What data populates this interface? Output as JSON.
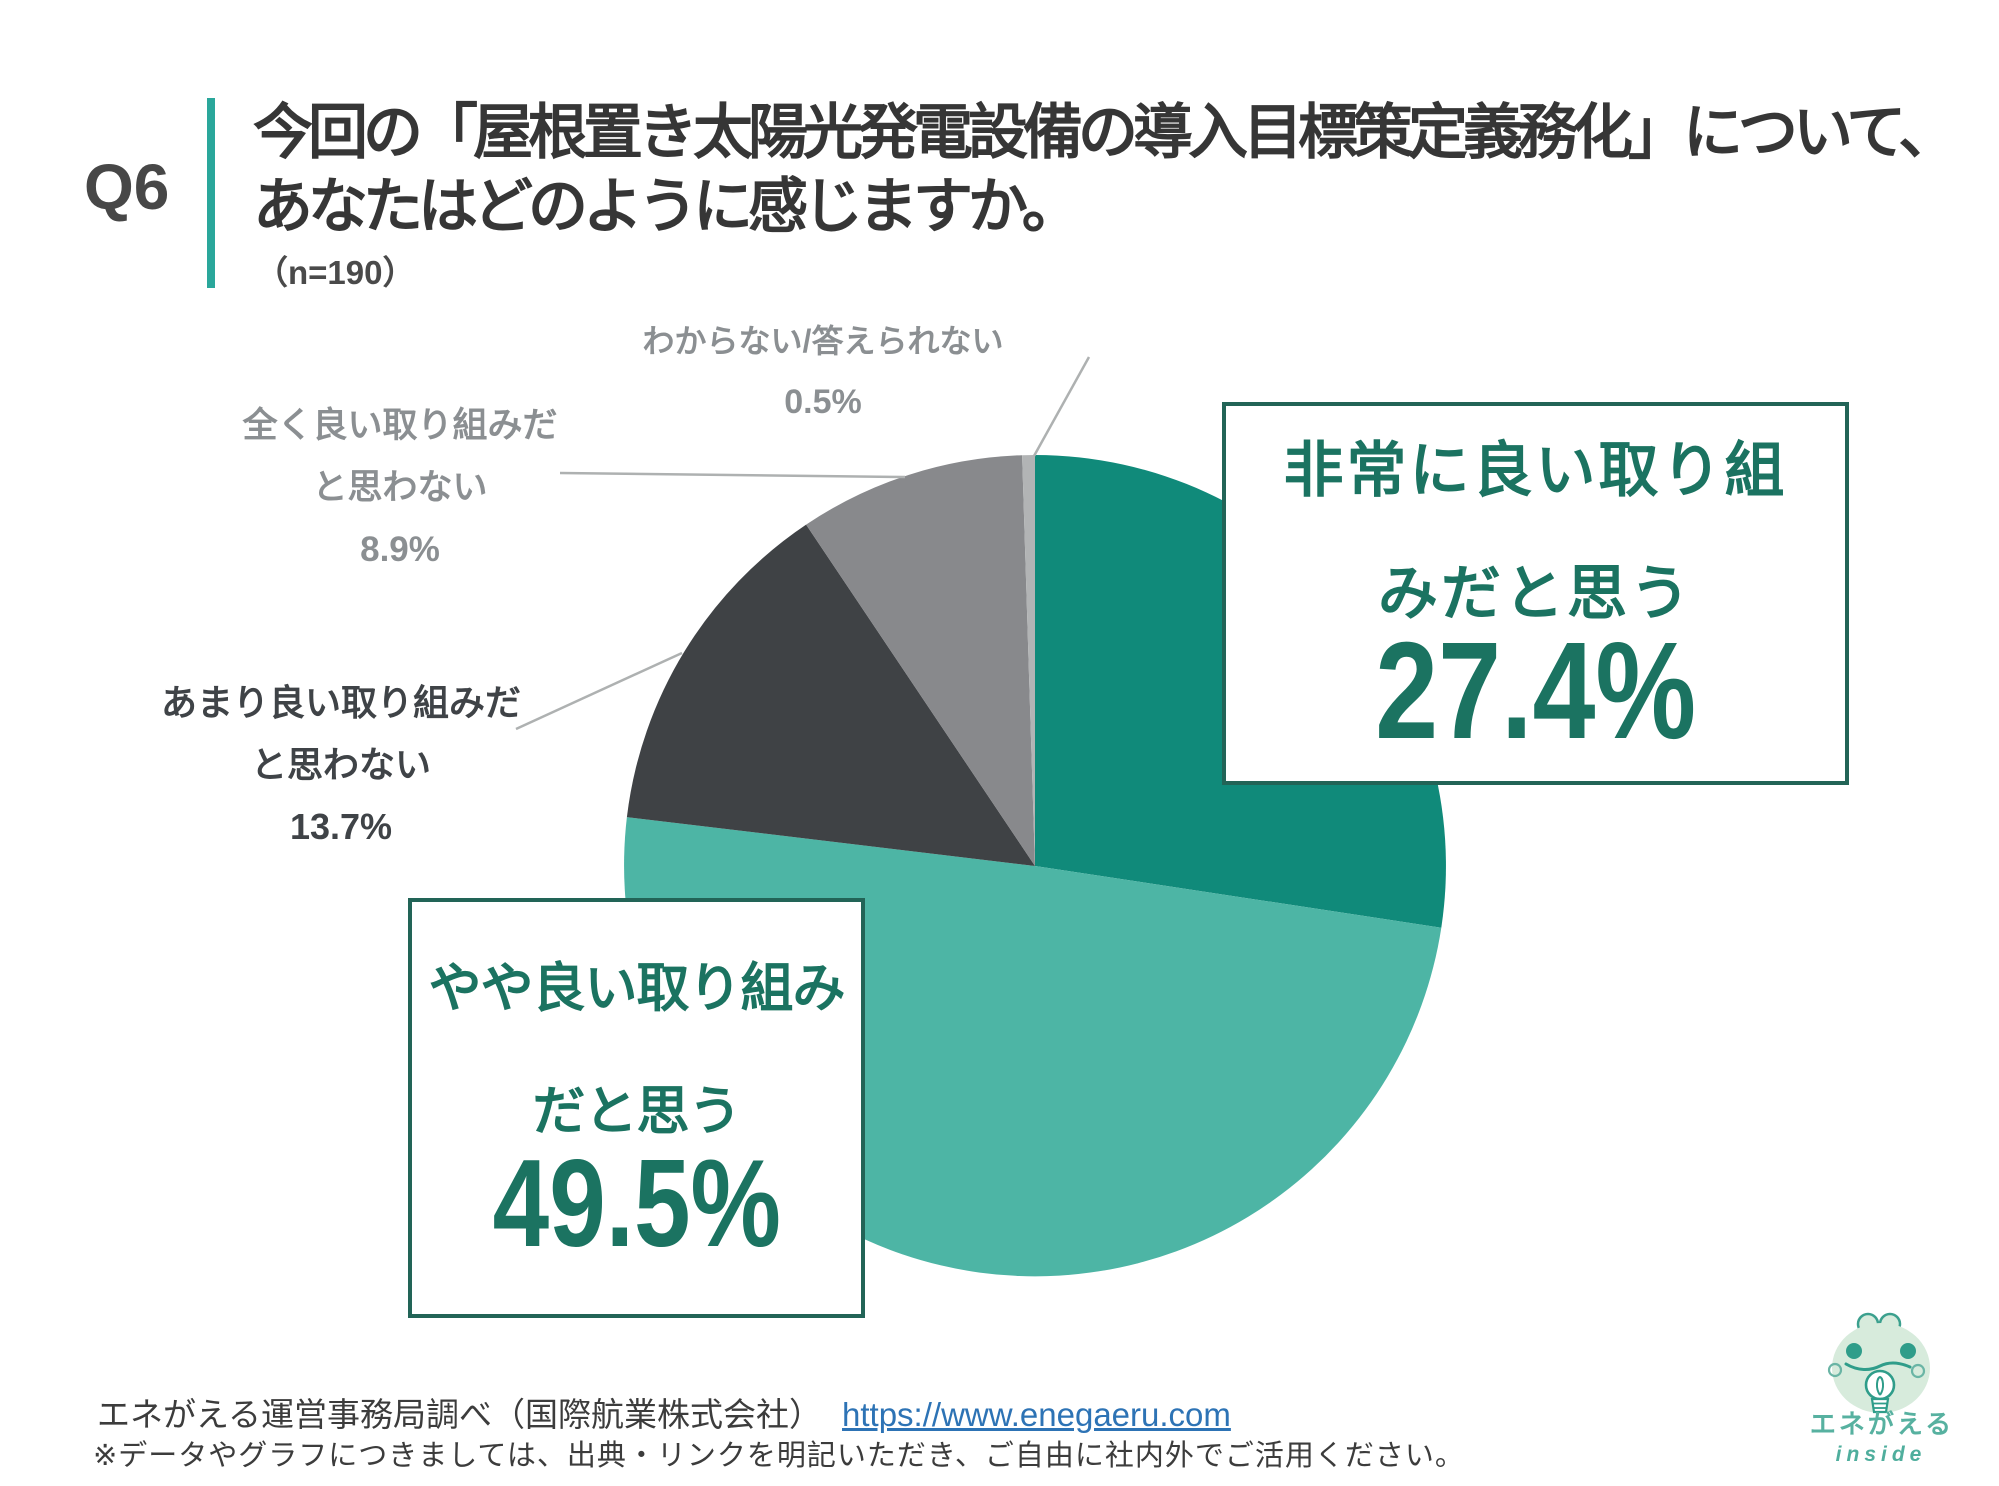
{
  "header": {
    "question_number": "Q6",
    "title_line1": "今回の「屋根置き太陽光発電設備の導入目標策定義務化」について、",
    "title_line2": "あなたはどのように感じますか。",
    "sample_size": "（n=190）",
    "accent_color": "#2aa79b"
  },
  "chart_data": {
    "type": "pie",
    "title": "今回の「屋根置き太陽光発電設備の導入目標策定義務化」について、あなたはどのように感じますか。",
    "n": 190,
    "unit": "%",
    "start_angle_deg": 0,
    "direction": "clockwise",
    "legend_position": "none",
    "slices": [
      {
        "label": "非常に良い取り組みだと思う",
        "value": 27.4,
        "color": "#108a7a"
      },
      {
        "label": "やや良い取り組みだと思う",
        "value": 49.5,
        "color": "#4db5a5"
      },
      {
        "label": "あまり良い取り組みだと思わない",
        "value": 13.7,
        "color": "#3f4245"
      },
      {
        "label": "全く良い取り組みだと思わない",
        "value": 8.9,
        "color": "#88898c"
      },
      {
        "label": "わからない/答えられない",
        "value": 0.5,
        "color": "#b2b4b5"
      }
    ]
  },
  "callouts": {
    "very_good": {
      "line1": "非常に良い取り組",
      "line2": "みだと思う",
      "value": "27.4%"
    },
    "somewhat_good": {
      "line1": "やや良い取り組み",
      "line2": "だと思う",
      "value": "49.5%"
    }
  },
  "labels": {
    "unknown": {
      "line1": "わからない/答えられない",
      "value": "0.5%"
    },
    "not_at_all_good": {
      "line1": "全く良い取り組みだ",
      "line2": "と思わない",
      "value": "8.9%"
    },
    "not_very_good": {
      "line1": "あまり良い取り組みだ",
      "line2": "と思わない",
      "value": "13.7%"
    }
  },
  "footer": {
    "source": "エネがえる運営事務局調べ（国際航業株式会社）",
    "link": "https://www.enegaeru.com",
    "note": "※データやグラフにつきましては、出典・リンクを明記いただき、ご自由に社内外でご活用ください。"
  },
  "logo": {
    "name": "エネがえる",
    "sub": "inside"
  }
}
